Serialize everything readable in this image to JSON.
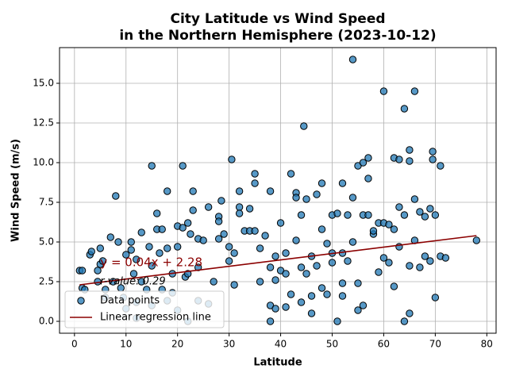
{
  "chart_data": {
    "type": "scatter",
    "title": "City Latitude vs Wind Speed\nin the Northern Hemisphere (2023-10-12)",
    "xlabel": "Latitude",
    "ylabel": "Wind Speed (m/s)",
    "xlim": [
      -2.9,
      81.8
    ],
    "ylim": [
      -0.75,
      17.25
    ],
    "xticks": [
      0,
      10,
      20,
      30,
      40,
      50,
      60,
      70,
      80
    ],
    "yticks": [
      {
        "value": 0,
        "label": "0.0"
      },
      {
        "value": 2.5,
        "label": "2.5"
      },
      {
        "value": 5,
        "label": "5.0"
      },
      {
        "value": 7.5,
        "label": "7.5"
      },
      {
        "value": 10,
        "label": "10.0"
      },
      {
        "value": 12.5,
        "label": "12.5"
      },
      {
        "value": 15,
        "label": "15.0"
      }
    ],
    "grid": true,
    "legend": "lower left",
    "series": [
      {
        "name": "Data points",
        "type": "scatter",
        "color": "#1f77b4",
        "x": [
          1,
          1.5,
          1.5,
          2,
          3,
          3.3,
          4.5,
          4.5,
          5,
          5,
          5.5,
          6,
          6,
          7,
          7.5,
          8,
          8.5,
          9,
          9.5,
          10,
          10,
          11,
          11,
          11.5,
          12,
          12,
          13,
          13,
          14,
          14.5,
          15,
          15,
          16,
          16,
          16.5,
          17,
          17,
          18,
          18,
          19,
          19,
          20,
          20,
          21,
          21,
          21.5,
          22,
          22,
          22.5,
          23,
          23,
          24,
          24,
          25,
          26,
          27,
          28,
          28,
          28,
          28.5,
          29,
          30,
          30,
          30.5,
          31,
          31,
          32,
          32,
          32,
          33,
          34,
          34,
          35,
          35,
          35,
          36,
          36,
          37,
          38,
          38,
          38,
          38,
          39,
          39,
          40,
          40,
          41,
          41,
          42,
          42,
          43,
          43,
          43,
          44,
          44,
          44.5,
          45,
          45,
          46,
          46,
          47,
          47,
          48,
          48,
          48,
          49,
          49,
          50,
          50,
          50,
          51,
          51,
          52,
          52,
          52,
          53,
          53,
          54,
          54,
          54,
          55,
          55,
          56,
          56,
          56,
          57,
          57,
          57,
          58,
          58,
          59,
          59,
          60,
          60,
          60,
          61,
          61,
          62,
          62,
          62,
          63,
          63,
          63,
          64,
          64,
          64,
          65,
          65,
          65,
          65,
          66,
          66,
          66,
          67,
          67,
          68,
          68,
          69,
          69,
          69.5,
          69.5,
          70,
          70,
          71,
          71,
          72,
          78,
          44,
          46,
          52,
          55,
          39,
          41,
          20,
          22,
          24,
          26,
          12,
          15,
          18
        ],
        "y": [
          3.2,
          3.2,
          2.1,
          2,
          4.2,
          4.4,
          2.5,
          3.2,
          3.6,
          4.6,
          3.8,
          2,
          1.5,
          5.3,
          2.5,
          7.9,
          5,
          2.1,
          1.5,
          0.8,
          4.2,
          4.5,
          5,
          3,
          3.9,
          1.2,
          5.6,
          2.5,
          2,
          4.7,
          9.8,
          3.5,
          6.8,
          5.8,
          4.3,
          5.8,
          2,
          8.2,
          4.6,
          3,
          1.8,
          6,
          4.7,
          9.8,
          5.9,
          2.8,
          6.2,
          3,
          5.5,
          8.2,
          7,
          5.2,
          3.4,
          5.1,
          7.2,
          2.5,
          6.6,
          6.3,
          5.2,
          7.6,
          5.5,
          3.8,
          4.7,
          10.2,
          4.3,
          2.3,
          8.2,
          7.2,
          6.8,
          5.7,
          7.1,
          5.7,
          8.7,
          9.3,
          5.7,
          4.6,
          2.5,
          5.4,
          8.2,
          3.4,
          1,
          0,
          4.1,
          2.6,
          6.2,
          3.2,
          4.3,
          3,
          9.3,
          1.7,
          8.1,
          7.8,
          5.1,
          6.7,
          3.4,
          12.3,
          7.7,
          3,
          4.1,
          1.6,
          8,
          3.5,
          5.8,
          8.7,
          2.1,
          4.9,
          1.7,
          6.7,
          3.7,
          4.3,
          6.8,
          0,
          8.7,
          4.3,
          2.4,
          6.7,
          3.8,
          5,
          16.5,
          7.8,
          9.8,
          2.4,
          6.7,
          10,
          1,
          10.3,
          9,
          6.7,
          5.5,
          5.7,
          6.2,
          3.1,
          14.5,
          6.2,
          4,
          6.1,
          3.7,
          10.3,
          5.8,
          2.2,
          10.2,
          7.2,
          4.7,
          13.4,
          6.7,
          0,
          10.8,
          10.1,
          3.5,
          0.5,
          14.5,
          7.7,
          5.1,
          6.9,
          3.4,
          6.6,
          4.1,
          7.1,
          3.8,
          10.7,
          10.2,
          6.7,
          1.5,
          4.1,
          9.8,
          4,
          5.1,
          1.2,
          0.5,
          1.6,
          0.7,
          0.8,
          0.9,
          0.7,
          0,
          1.3,
          1.1,
          0.2,
          1,
          1.3
        ]
      },
      {
        "name": "Linear regression line",
        "type": "line",
        "color": "#8b0000",
        "x": [
          1,
          78
        ],
        "y": [
          2.3,
          5.4
        ]
      }
    ],
    "annotations": [
      {
        "text": "y = 0.04x + 2.28",
        "x": 5,
        "y": 3.7,
        "color": "#8b0000",
        "size": 15
      },
      {
        "text": "r-value: 0.29",
        "x": 5,
        "y": 2.5,
        "color": "#000000",
        "size": 13,
        "italic": true
      }
    ]
  }
}
